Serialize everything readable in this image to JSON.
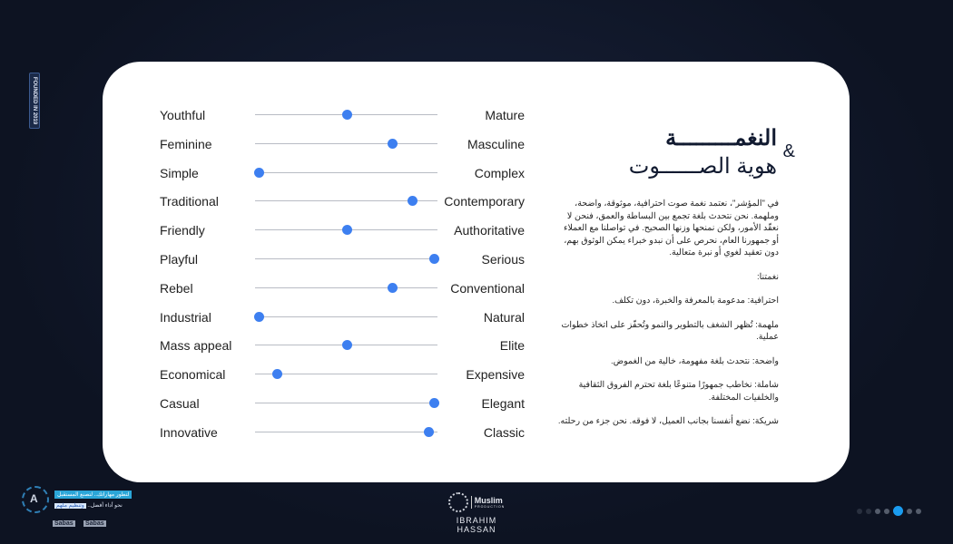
{
  "side_label": "FOUNDED IN 2019",
  "title": {
    "line1": "النغمـــــــــة",
    "line2": "هوية الصــــــوت",
    "amp": "&"
  },
  "body": [
    "في \"المؤشر\"، نعتمد نغمة صوت احترافية، موثوقة، واضحة، وملهمة. نحن نتحدث بلغة تجمع بين البساطة والعمق، فنحن لا نعقّد الأمور، ولكن نمنحها وزنها الصحيح. في تواصلنا مع العملاء أو جمهورنا العام، نحرص على أن نبدو خبراء يمكن الوثوق بهم، دون تعقيد لغوي أو نبرة متعالية.",
    "نغمتنا:",
    "احترافية: مدعومة بالمعرفة والخبرة، دون تكلف.",
    "ملهمة: تُظهر الشغف بالتطوير والنمو وتُحفّز على اتخاذ خطوات عملية.",
    "واضحة: نتحدث بلغة مفهومة، خالية من الغموض.",
    "شاملة: نخاطب جمهورًا متنوعًا بلغة تحترم الفروق الثقافية والخلفيات المختلفة.",
    "شريكة: نضع أنفسنا بجانب العميل، لا فوقه. نحن جزء من رحلته."
  ],
  "scales": [
    {
      "left": "Youthful",
      "right": "Mature",
      "value": 0.5
    },
    {
      "left": "Feminine",
      "right": "Masculine",
      "value": 0.75
    },
    {
      "left": "Simple",
      "right": "Complex",
      "value": 0.02
    },
    {
      "left": "Traditional",
      "right": "Contemporary",
      "value": 0.86
    },
    {
      "left": "Friendly",
      "right": "Authoritative",
      "value": 0.5
    },
    {
      "left": "Playful",
      "right": "Serious",
      "value": 0.98
    },
    {
      "left": "Rebel",
      "right": "Conventional",
      "value": 0.75
    },
    {
      "left": "Industrial",
      "right": "Natural",
      "value": 0.02
    },
    {
      "left": "Mass appeal",
      "right": "Elite",
      "value": 0.5
    },
    {
      "left": "Economical",
      "right": "Expensive",
      "value": 0.12
    },
    {
      "left": "Casual",
      "right": "Elegant",
      "value": 0.98
    },
    {
      "left": "Innovative",
      "right": "Classic",
      "value": 0.95
    }
  ],
  "footer_left": {
    "tag1": "لتطور مهاراتك.. لتصنع المستقبل",
    "tag2": "نحو أداء أفضل..",
    "tag2_highlight": "وتنظيم ملهم",
    "badge1": "Sabas",
    "badge2": "Sabas"
  },
  "footer_center": {
    "brand": "Muslim",
    "sub": "PRODUCTION",
    "name": "IBRAHIM HASSAN"
  },
  "pagination": {
    "total": 7,
    "active": 5
  },
  "colors": {
    "accent": "#3d7ff0",
    "active_dot": "#1a9cf0"
  }
}
